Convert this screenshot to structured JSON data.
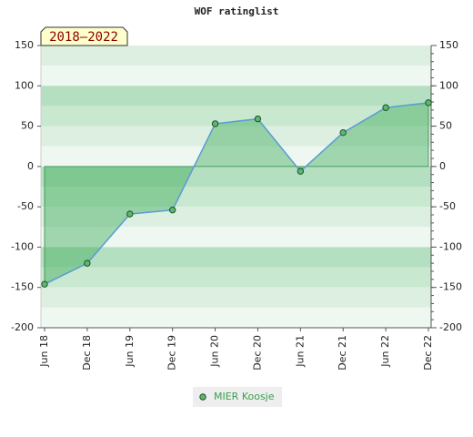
{
  "chart_data": {
    "type": "area",
    "title": "WOF ratinglist",
    "badge": "2018–2022",
    "categories": [
      "Jun 18",
      "Dec 18",
      "Jun 19",
      "Dec 19",
      "Jun 20",
      "Dec 20",
      "Jun 21",
      "Dec 21",
      "Jun 22",
      "Dec 22"
    ],
    "series": [
      {
        "name": "MIER Koosje",
        "color": "#5b9bd5",
        "values": [
          -146,
          -120,
          -59,
          -54,
          53,
          59,
          -6,
          42,
          73,
          79
        ]
      }
    ],
    "ylim": [
      -200,
      150
    ],
    "yticks": [
      -200,
      -150,
      -100,
      -50,
      0,
      50,
      100,
      150
    ],
    "y2lim": [
      -200,
      150
    ],
    "y2ticks": [
      -200,
      -150,
      -100,
      -50,
      0,
      50,
      100,
      150
    ],
    "grid": true
  }
}
